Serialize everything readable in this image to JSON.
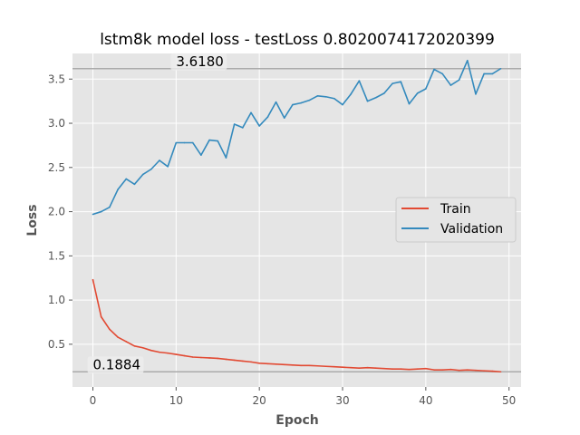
{
  "chart_data": {
    "type": "line",
    "title": "lstm8k model loss - testLoss 0.8020074172020399",
    "xlabel": "Epoch",
    "ylabel": "Loss",
    "xlim": [
      -2.45,
      51.45
    ],
    "ylim": [
      0.0167,
      3.7898
    ],
    "xticks": [
      0,
      10,
      20,
      30,
      40,
      50
    ],
    "yticks": [
      0.5,
      1.0,
      1.5,
      2.0,
      2.5,
      3.0,
      3.5
    ],
    "ytick_labels": [
      "0.5",
      "1.0",
      "1.5",
      "2.0",
      "2.5",
      "3.0",
      "3.5"
    ],
    "grid": true,
    "legend_position": "center-right",
    "series": [
      {
        "name": "Train",
        "color": "#E24A33",
        "x": [
          0,
          1,
          2,
          3,
          4,
          5,
          6,
          7,
          8,
          9,
          10,
          11,
          12,
          13,
          14,
          15,
          16,
          17,
          18,
          19,
          20,
          21,
          22,
          23,
          24,
          25,
          26,
          27,
          28,
          29,
          30,
          31,
          32,
          33,
          34,
          35,
          36,
          37,
          38,
          39,
          40,
          41,
          42,
          43,
          44,
          45,
          46,
          47,
          48,
          49
        ],
        "values": [
          1.23,
          0.81,
          0.67,
          0.58,
          0.53,
          0.48,
          0.46,
          0.43,
          0.41,
          0.4,
          0.385,
          0.37,
          0.355,
          0.35,
          0.345,
          0.34,
          0.33,
          0.32,
          0.31,
          0.3,
          0.285,
          0.28,
          0.275,
          0.27,
          0.265,
          0.26,
          0.26,
          0.255,
          0.25,
          0.245,
          0.24,
          0.235,
          0.23,
          0.235,
          0.23,
          0.225,
          0.22,
          0.22,
          0.215,
          0.22,
          0.225,
          0.21,
          0.21,
          0.215,
          0.205,
          0.21,
          0.205,
          0.2,
          0.195,
          0.1884
        ]
      },
      {
        "name": "Validation",
        "color": "#348ABD",
        "x": [
          0,
          1,
          2,
          3,
          4,
          5,
          6,
          7,
          8,
          9,
          10,
          11,
          12,
          13,
          14,
          15,
          16,
          17,
          18,
          19,
          20,
          21,
          22,
          23,
          24,
          25,
          26,
          27,
          28,
          29,
          30,
          31,
          32,
          33,
          34,
          35,
          36,
          37,
          38,
          39,
          40,
          41,
          42,
          43,
          44,
          45,
          46,
          47,
          48,
          49
        ],
        "values": [
          1.97,
          2.0,
          2.05,
          2.25,
          2.37,
          2.31,
          2.42,
          2.48,
          2.58,
          2.51,
          2.78,
          2.78,
          2.78,
          2.64,
          2.81,
          2.8,
          2.61,
          2.99,
          2.95,
          3.12,
          2.97,
          3.07,
          3.24,
          3.06,
          3.21,
          3.23,
          3.26,
          3.31,
          3.3,
          3.28,
          3.21,
          3.33,
          3.48,
          3.25,
          3.29,
          3.34,
          3.45,
          3.47,
          3.22,
          3.34,
          3.39,
          3.61,
          3.56,
          3.43,
          3.49,
          3.71,
          3.33,
          3.56,
          3.56,
          3.618
        ]
      }
    ],
    "reference_lines": [
      {
        "value": 3.618,
        "label": "3.6180",
        "color": "#aaaaaa"
      },
      {
        "value": 0.1884,
        "label": "0.1884",
        "color": "#aaaaaa"
      }
    ]
  }
}
